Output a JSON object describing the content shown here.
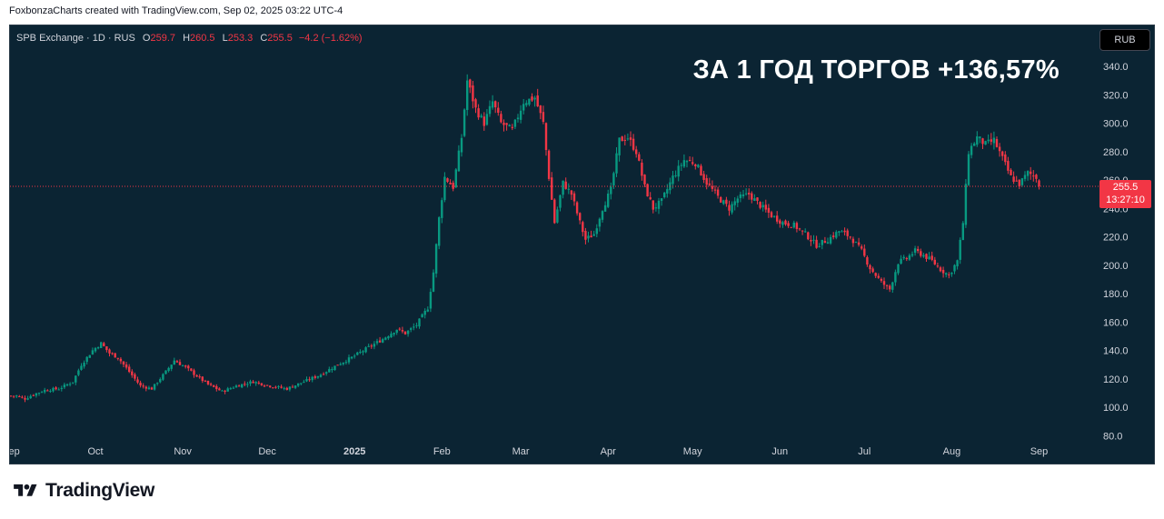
{
  "attribution": "FoxbonzaCharts created with TradingView.com, Sep 02, 2025 03:22 UTC-4",
  "legend": {
    "symbol": "SPB Exchange · 1D · RUS",
    "open_label": "O",
    "open": "259.7",
    "high_label": "H",
    "high": "260.5",
    "low_label": "L",
    "low": "253.3",
    "close_label": "C",
    "close": "255.5",
    "change": "−4.2 (−1.62%)"
  },
  "currency": "RUB",
  "headline": "ЗА 1 ГОД ТОРГОВ +136,57%",
  "last_price": {
    "value": "255.5",
    "countdown": "13:27:10"
  },
  "brand": "TradingView",
  "colors": {
    "background": "#0b2433",
    "up": "#089981",
    "down": "#f23645",
    "text": "#d1d4dc"
  },
  "chart_data": {
    "type": "candlestick",
    "title": "SPB Exchange · 1D · RUS",
    "ylim": [
      80,
      345
    ],
    "y_ticks": [
      "340.0",
      "320.0",
      "300.0",
      "280.0",
      "260.0",
      "240.0",
      "220.0",
      "200.0",
      "180.0",
      "160.0",
      "140.0",
      "120.0",
      "100.0",
      "80.0"
    ],
    "x_ticks": [
      {
        "label": "Sep",
        "day": 0
      },
      {
        "label": "Oct",
        "day": 30
      },
      {
        "label": "Nov",
        "day": 61
      },
      {
        "label": "Dec",
        "day": 91
      },
      {
        "label": "2025",
        "day": 122,
        "bold": true
      },
      {
        "label": "Feb",
        "day": 153
      },
      {
        "label": "Mar",
        "day": 181
      },
      {
        "label": "Apr",
        "day": 212
      },
      {
        "label": "May",
        "day": 242
      },
      {
        "label": "Jun",
        "day": 273
      },
      {
        "label": "Jul",
        "day": 303
      },
      {
        "label": "Aug",
        "day": 334
      },
      {
        "label": "Sep",
        "day": 365
      }
    ],
    "x_range_days": [
      0,
      370
    ],
    "anchors": [
      [
        2,
        108
      ],
      [
        5,
        106
      ],
      [
        8,
        109
      ],
      [
        12,
        112
      ],
      [
        17,
        113
      ],
      [
        22,
        118
      ],
      [
        25,
        130
      ],
      [
        29,
        140
      ],
      [
        32,
        145
      ],
      [
        35,
        138
      ],
      [
        38,
        135
      ],
      [
        42,
        125
      ],
      [
        46,
        115
      ],
      [
        50,
        113
      ],
      [
        55,
        125
      ],
      [
        58,
        133
      ],
      [
        62,
        128
      ],
      [
        66,
        122
      ],
      [
        70,
        116
      ],
      [
        75,
        111
      ],
      [
        80,
        115
      ],
      [
        86,
        118
      ],
      [
        92,
        115
      ],
      [
        98,
        113
      ],
      [
        104,
        118
      ],
      [
        110,
        123
      ],
      [
        116,
        130
      ],
      [
        121,
        135
      ],
      [
        126,
        141
      ],
      [
        132,
        148
      ],
      [
        137,
        155
      ],
      [
        140,
        152
      ],
      [
        144,
        158
      ],
      [
        148,
        170
      ],
      [
        150,
        195
      ],
      [
        152,
        233
      ],
      [
        154,
        262
      ],
      [
        157,
        255
      ],
      [
        160,
        290
      ],
      [
        162,
        330
      ],
      [
        165,
        310
      ],
      [
        168,
        300
      ],
      [
        171,
        315
      ],
      [
        174,
        300
      ],
      [
        178,
        295
      ],
      [
        182,
        315
      ],
      [
        186,
        318
      ],
      [
        189,
        300
      ],
      [
        191,
        262
      ],
      [
        193,
        230
      ],
      [
        196,
        258
      ],
      [
        199,
        250
      ],
      [
        202,
        230
      ],
      [
        204,
        218
      ],
      [
        207,
        222
      ],
      [
        210,
        240
      ],
      [
        213,
        253
      ],
      [
        216,
        288
      ],
      [
        219,
        290
      ],
      [
        222,
        280
      ],
      [
        225,
        255
      ],
      [
        228,
        240
      ],
      [
        231,
        245
      ],
      [
        235,
        262
      ],
      [
        239,
        274
      ],
      [
        243,
        272
      ],
      [
        247,
        258
      ],
      [
        251,
        248
      ],
      [
        255,
        240
      ],
      [
        258,
        247
      ],
      [
        262,
        250
      ],
      [
        266,
        242
      ],
      [
        270,
        235
      ],
      [
        274,
        230
      ],
      [
        278,
        228
      ],
      [
        282,
        222
      ],
      [
        286,
        214
      ],
      [
        290,
        218
      ],
      [
        294,
        224
      ],
      [
        298,
        220
      ],
      [
        302,
        210
      ],
      [
        305,
        198
      ],
      [
        309,
        188
      ],
      [
        312,
        183
      ],
      [
        315,
        202
      ],
      [
        318,
        205
      ],
      [
        321,
        210
      ],
      [
        324,
        207
      ],
      [
        327,
        203
      ],
      [
        330,
        197
      ],
      [
        333,
        193
      ],
      [
        336,
        203
      ],
      [
        338,
        230
      ],
      [
        340,
        280
      ],
      [
        343,
        290
      ],
      [
        346,
        285
      ],
      [
        349,
        288
      ],
      [
        352,
        275
      ],
      [
        355,
        262
      ],
      [
        358,
        257
      ],
      [
        361,
        265
      ],
      [
        364,
        262
      ],
      [
        365,
        255.5
      ]
    ],
    "last": {
      "open": 259.7,
      "high": 260.5,
      "low": 253.3,
      "close": 255.5
    }
  }
}
